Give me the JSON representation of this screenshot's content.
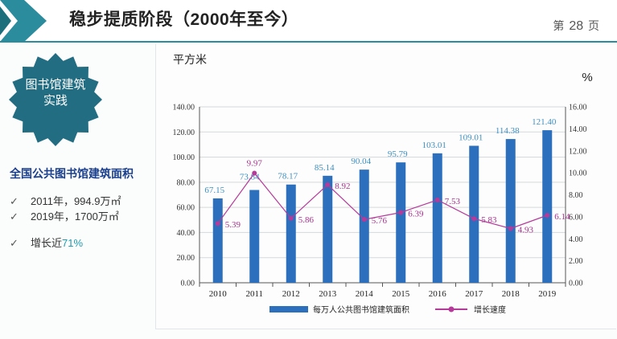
{
  "header": {
    "title": "稳步提质阶段（2000年至今）",
    "page_prefix": "第",
    "page_number": "28",
    "page_suffix": "页",
    "accent_color": "#2a8c9c"
  },
  "badge": {
    "line1": "图书馆建筑",
    "line2": "实践",
    "color": "#236d82"
  },
  "summary": {
    "heading": "全国公共图书馆建筑面积",
    "items": [
      {
        "check": "✓",
        "text": "2011年，994.9万㎡"
      },
      {
        "check": "✓",
        "text": "2019年，1700万㎡"
      }
    ],
    "growth": {
      "check": "✓",
      "prefix": "增长近",
      "value": "71%"
    }
  },
  "chart_data": {
    "type": "bar+line",
    "left_unit_label": "平方米",
    "right_unit_label": "%",
    "categories": [
      "2010",
      "2011",
      "2012",
      "2013",
      "2014",
      "2015",
      "2016",
      "2017",
      "2018",
      "2019"
    ],
    "series": [
      {
        "name": "每万人公共图书馆建筑面积",
        "type": "bar",
        "axis": "left",
        "values": [
          67.15,
          73.84,
          78.17,
          85.14,
          90.04,
          95.79,
          103.01,
          109.01,
          114.38,
          121.4
        ],
        "color": "#2b6fbd"
      },
      {
        "name": "增长速度",
        "type": "line",
        "axis": "right",
        "values": [
          5.39,
          9.97,
          5.86,
          8.92,
          5.76,
          6.39,
          7.53,
          5.83,
          4.93,
          6.14
        ],
        "color": "#b53a9a"
      }
    ],
    "left_axis": {
      "min": 0,
      "max": 140,
      "ticks": [
        "0.00",
        "20.00",
        "40.00",
        "60.00",
        "80.00",
        "100.00",
        "120.00",
        "140.00"
      ]
    },
    "right_axis": {
      "min": 0,
      "max": 16,
      "ticks": [
        "0.00",
        "2.00",
        "4.00",
        "6.00",
        "8.00",
        "10.00",
        "12.00",
        "14.00",
        "16.00"
      ]
    },
    "bar_labels": [
      "67.15",
      "73.84",
      "78.17",
      "85.14",
      "90.04",
      "95.79",
      "103.01",
      "109.01",
      "114.38",
      "121.40"
    ],
    "line_labels": [
      "5.39",
      "9.97",
      "5.86",
      "8.92",
      "5.76",
      "6.39",
      "7.53",
      "5.83",
      "4.93",
      "6.14"
    ],
    "gridlines": true,
    "legend_position": "bottom"
  }
}
